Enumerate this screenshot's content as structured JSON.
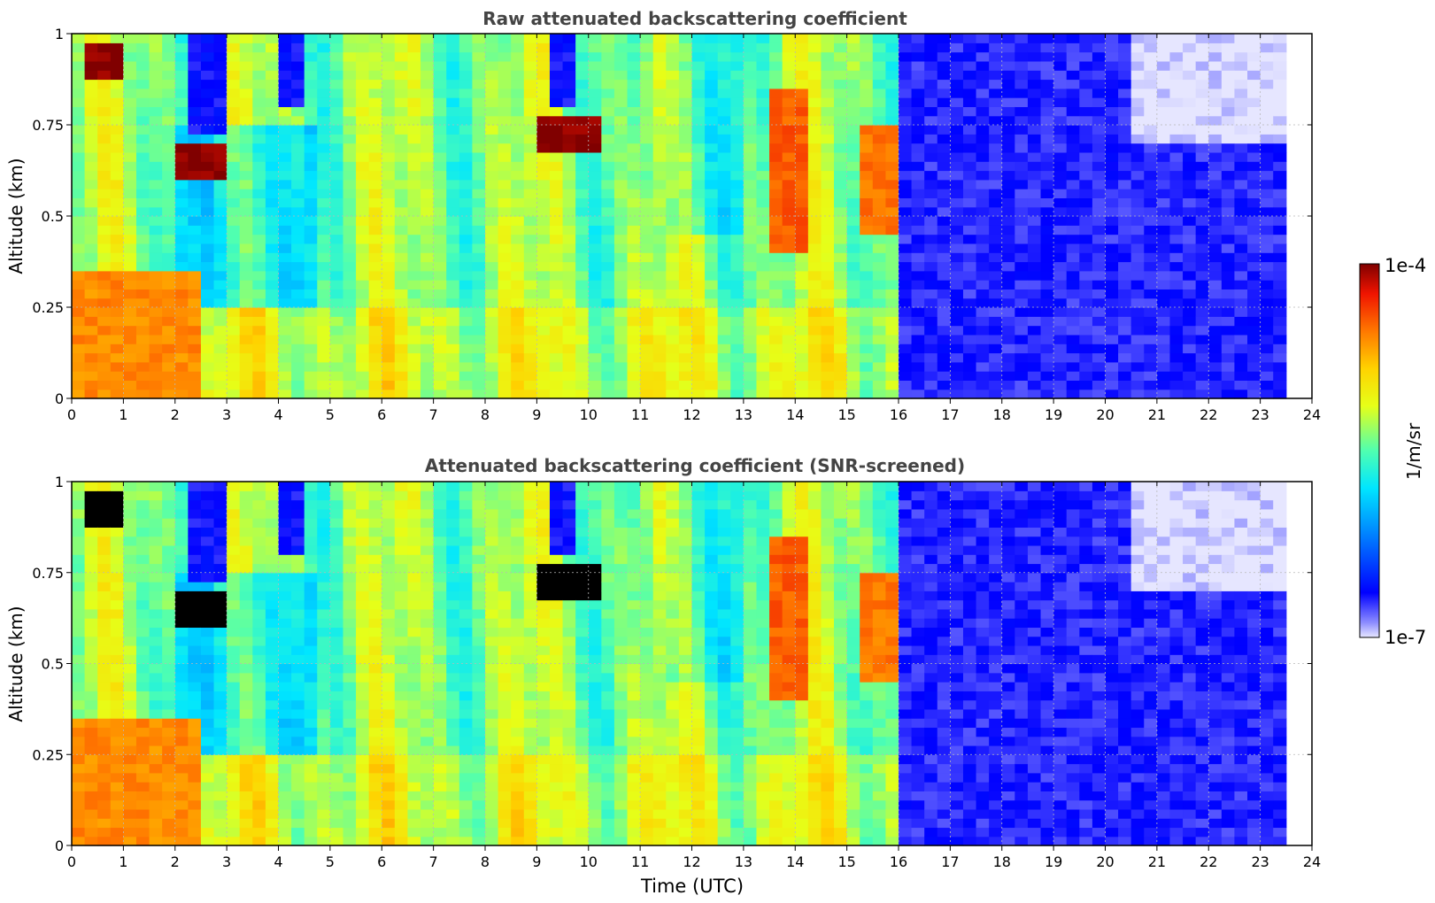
{
  "chart_data": [
    {
      "type": "heatmap",
      "title": "Raw attenuated backscattering coefficient",
      "xlabel": "",
      "ylabel": "Altitude (km)",
      "xlim": [
        0,
        24
      ],
      "ylim": [
        0,
        1
      ],
      "x_ticks": [
        "0",
        "1",
        "2",
        "3",
        "4",
        "5",
        "6",
        "7",
        "8",
        "9",
        "10",
        "11",
        "12",
        "13",
        "14",
        "15",
        "16",
        "17",
        "18",
        "19",
        "20",
        "21",
        "22",
        "23",
        "24"
      ],
      "y_ticks": [
        "0",
        "0.25",
        "0.5",
        "0.75",
        "1"
      ],
      "grid": true,
      "data_end_time": 23.5,
      "screened": false,
      "regions": [
        {
          "t": [
            0.1,
            2.4
          ],
          "alt": [
            0.0,
            0.35
          ],
          "level": 0.8
        },
        {
          "t": [
            2.0,
            3.1
          ],
          "alt": [
            0.6,
            0.7
          ],
          "level": 1.0
        },
        {
          "t": [
            0.2,
            0.9
          ],
          "alt": [
            0.87,
            0.98
          ],
          "level": 1.0
        },
        {
          "t": [
            9.0,
            10.3
          ],
          "alt": [
            0.68,
            0.78
          ],
          "level": 1.0
        },
        {
          "t": [
            2.3,
            3.0
          ],
          "alt": [
            0.72,
            1.0
          ],
          "level": 0.12
        },
        {
          "t": [
            3.9,
            4.4
          ],
          "alt": [
            0.8,
            1.0
          ],
          "level": 0.12
        },
        {
          "t": [
            9.2,
            9.7
          ],
          "alt": [
            0.8,
            1.0
          ],
          "level": 0.12
        },
        {
          "t": [
            13.5,
            14.2
          ],
          "alt": [
            0.4,
            0.85
          ],
          "level": 0.85
        },
        {
          "t": [
            15.3,
            15.9
          ],
          "alt": [
            0.45,
            0.75
          ],
          "level": 0.82
        },
        {
          "t": [
            16.0,
            23.5
          ],
          "alt": [
            0.0,
            1.0
          ],
          "level": 0.1
        },
        {
          "t": [
            20.5,
            23.5
          ],
          "alt": [
            0.7,
            1.0
          ],
          "level": 0.0
        }
      ]
    },
    {
      "type": "heatmap",
      "title": "Attenuated backscattering coefficient (SNR-screened)",
      "xlabel": "Time (UTC)",
      "ylabel": "Altitude (km)",
      "xlim": [
        0,
        24
      ],
      "ylim": [
        0,
        1
      ],
      "x_ticks": [
        "0",
        "1",
        "2",
        "3",
        "4",
        "5",
        "6",
        "7",
        "8",
        "9",
        "10",
        "11",
        "12",
        "13",
        "14",
        "15",
        "16",
        "17",
        "18",
        "19",
        "20",
        "21",
        "22",
        "23",
        "24"
      ],
      "y_ticks": [
        "0",
        "0.25",
        "0.5",
        "0.75",
        "1"
      ],
      "grid": true,
      "data_end_time": 23.5,
      "screened": true,
      "regions": [
        {
          "t": [
            0.1,
            2.4
          ],
          "alt": [
            0.0,
            0.35
          ],
          "level": 0.8
        },
        {
          "t": [
            2.0,
            3.1
          ],
          "alt": [
            0.6,
            0.7
          ],
          "level": "screened"
        },
        {
          "t": [
            0.2,
            0.9
          ],
          "alt": [
            0.87,
            0.98
          ],
          "level": "screened"
        },
        {
          "t": [
            9.0,
            10.3
          ],
          "alt": [
            0.68,
            0.78
          ],
          "level": "screened"
        },
        {
          "t": [
            2.3,
            3.0
          ],
          "alt": [
            0.72,
            1.0
          ],
          "level": 0.12
        },
        {
          "t": [
            3.9,
            4.4
          ],
          "alt": [
            0.8,
            1.0
          ],
          "level": 0.12
        },
        {
          "t": [
            9.2,
            9.7
          ],
          "alt": [
            0.8,
            1.0
          ],
          "level": 0.12
        },
        {
          "t": [
            13.5,
            14.2
          ],
          "alt": [
            0.4,
            0.85
          ],
          "level": 0.85
        },
        {
          "t": [
            15.3,
            15.9
          ],
          "alt": [
            0.45,
            0.75
          ],
          "level": 0.82
        },
        {
          "t": [
            16.0,
            23.5
          ],
          "alt": [
            0.0,
            1.0
          ],
          "level": 0.1
        },
        {
          "t": [
            20.5,
            23.5
          ],
          "alt": [
            0.7,
            1.0
          ],
          "level": 0.0
        }
      ]
    }
  ],
  "colorbar": {
    "label": "1/m/sr",
    "max_label": "1e-4",
    "min_label": "1e-7",
    "scale": "log",
    "colormap": "jet",
    "range": [
      1e-07,
      0.0001
    ]
  },
  "colors": {
    "screened": "#000000",
    "grid": "#b8b8b8",
    "title": "#444444"
  }
}
